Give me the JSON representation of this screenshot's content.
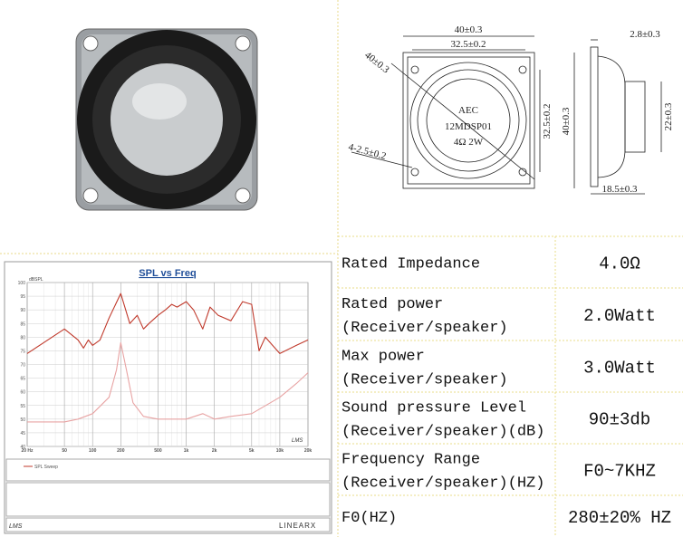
{
  "drawing": {
    "top_width": "40±0.3",
    "inner_width": "32.5±0.2",
    "diagonal": "40±0.3",
    "holes": "4-2.5±0.2",
    "brand": "AEC",
    "model": "12MDSP01",
    "rating": "4Ω 2W",
    "inner_height": "32.5±0.2",
    "height": "40±0.3",
    "flange": "2.8±0.3",
    "depth_height": "22±0.3",
    "depth": "18.5±0.3"
  },
  "spl_chart": {
    "title": "SPL vs Freq",
    "y_label": "dBSPL",
    "legend": "SPL Sweep",
    "brand": "LMS",
    "vendor": "LINEARX",
    "xlim": [
      20,
      20000
    ],
    "ylim": [
      40,
      100
    ],
    "xticks": [
      {
        "value": 20,
        "label": "20 Hz"
      },
      50,
      100,
      200,
      500,
      {
        "value": 1000,
        "label": "1k"
      },
      {
        "value": 2000,
        "label": "2k"
      },
      {
        "value": 5000,
        "label": "5k"
      },
      {
        "value": 10000,
        "label": "10k"
      },
      {
        "value": 20000,
        "label": "20k"
      }
    ],
    "yticks": [
      100,
      95,
      90,
      85,
      80,
      75,
      70,
      65,
      60,
      55,
      50,
      45,
      40
    ],
    "series": [
      {
        "color": "#c0392b",
        "x": [
          20,
          30,
          50,
          70,
          80,
          90,
          100,
          120,
          150,
          200,
          250,
          300,
          350,
          400,
          500,
          600,
          700,
          800,
          1000,
          1200,
          1500,
          1800,
          2200,
          3000,
          4000,
          5000,
          6000,
          7000,
          10000,
          15000,
          20000
        ],
        "values": [
          74,
          78,
          83,
          79,
          76,
          79,
          77,
          79,
          87,
          96,
          85,
          88,
          83,
          85,
          88,
          90,
          92,
          91,
          93,
          90,
          83,
          91,
          88,
          86,
          93,
          92,
          75,
          80,
          74,
          77,
          79
        ]
      },
      {
        "color": "#e8a3a3",
        "x": [
          20,
          30,
          50,
          70,
          100,
          150,
          180,
          200,
          230,
          270,
          350,
          500,
          1000,
          1500,
          2000,
          3000,
          5000,
          10000,
          15000,
          20000
        ],
        "values": [
          49,
          49,
          49,
          50,
          52,
          58,
          68,
          78,
          68,
          56,
          51,
          50,
          50,
          52,
          50,
          51,
          52,
          58,
          63,
          67
        ]
      }
    ]
  },
  "specs": {
    "rows": [
      {
        "label": [
          "Rated Impedance"
        ],
        "value": "4.0Ω"
      },
      {
        "label": [
          "Rated power",
          "(Receiver/speaker)"
        ],
        "value": "2.0Watt"
      },
      {
        "label": [
          "Max power",
          "(Receiver/speaker)"
        ],
        "value": "3.0Watt"
      },
      {
        "label": [
          "Sound pressure Level",
          "(Receiver/speaker)(dB)"
        ],
        "value": "90±3db"
      },
      {
        "label": [
          "Frequency Range",
          "(Receiver/speaker)(HZ)"
        ],
        "value": "F0~7KHZ"
      },
      {
        "label": [
          "F0(HZ)"
        ],
        "value": "280±20% HZ"
      }
    ]
  }
}
